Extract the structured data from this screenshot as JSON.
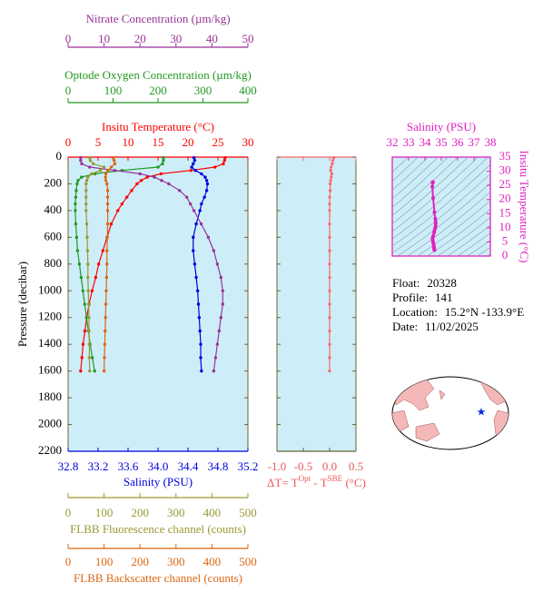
{
  "chart_data": [
    {
      "type": "profile",
      "ylabel": "Pressure (decibar)",
      "ylim": [
        0,
        2200
      ],
      "yticks": [
        0,
        200,
        400,
        600,
        800,
        1000,
        1200,
        1400,
        1600,
        1800,
        2000,
        2200
      ],
      "pressure": [
        5,
        25,
        50,
        75,
        100,
        125,
        150,
        175,
        200,
        250,
        300,
        350,
        400,
        500,
        600,
        700,
        800,
        900,
        1000,
        1100,
        1200,
        1300,
        1400,
        1500,
        1600
      ],
      "series": [
        {
          "name": "Insitu Temperature (°C)",
          "color": "#ff0000",
          "xlim": [
            0,
            30
          ],
          "xticks": [
            0,
            5,
            10,
            15,
            20,
            25,
            30
          ],
          "values": [
            26.2,
            26.1,
            25.9,
            24.5,
            20.5,
            15.5,
            13.2,
            12.2,
            11.5,
            10.6,
            9.8,
            9.0,
            8.3,
            7.2,
            6.5,
            5.8,
            5.1,
            4.6,
            4.0,
            3.5,
            3.1,
            2.8,
            2.5,
            2.3,
            2.1
          ]
        },
        {
          "name": "Salinity (PSU)",
          "color": "#0000dd",
          "xlim": [
            32.8,
            35.2
          ],
          "xticks": [
            32.8,
            33.2,
            33.6,
            {
              "value": 34,
              "label": "34.0"
            },
            34.4,
            34.8,
            35.2
          ],
          "values": [
            34.48,
            34.49,
            34.47,
            34.45,
            34.5,
            34.58,
            34.63,
            34.65,
            34.66,
            34.65,
            34.62,
            34.58,
            34.56,
            34.51,
            34.47,
            34.47,
            34.49,
            34.51,
            34.53,
            34.54,
            34.55,
            34.56,
            34.57,
            34.57,
            34.58
          ]
        },
        {
          "name": "Optode Oxygen Concentration (µm/kg)",
          "color": "#229922",
          "xlim": [
            0,
            400
          ],
          "xticks": [
            0,
            100,
            200,
            300,
            400
          ],
          "values": [
            212,
            212,
            210,
            200,
            120,
            60,
            30,
            22,
            20,
            18,
            17,
            16,
            16,
            17,
            19,
            21,
            25,
            29,
            33,
            37,
            41,
            45,
            49,
            54,
            59
          ]
        },
        {
          "name": "Nitrate Concentration (µm/kg)",
          "color": "#993399",
          "xlim": [
            0,
            50
          ],
          "xticks": [
            0,
            10,
            20,
            30,
            40,
            50
          ],
          "values": [
            3.5,
            3.5,
            3.8,
            6,
            13,
            20,
            24,
            26,
            28,
            31,
            33,
            34,
            35,
            37,
            39,
            40.5,
            41.5,
            42.5,
            43,
            43,
            42.5,
            42,
            41.5,
            41,
            40.5
          ]
        },
        {
          "name": "FLBB Fluorescence channel (counts)",
          "color": "#999933",
          "xlim": [
            0,
            500
          ],
          "xticks": [
            0,
            100,
            200,
            300,
            400,
            500
          ],
          "values": [
            60,
            62,
            70,
            100,
            90,
            65,
            55,
            52,
            50,
            50,
            50,
            50,
            50,
            52,
            53,
            54,
            55,
            55,
            56,
            57,
            58,
            58,
            59,
            59,
            60
          ]
        },
        {
          "name": "FLBB Backscatter channel (counts)",
          "color": "#dd6611",
          "xlim": [
            0,
            500
          ],
          "xticks": [
            0,
            100,
            200,
            300,
            400,
            500
          ],
          "values": [
            125,
            128,
            130,
            120,
            110,
            105,
            104,
            105,
            108,
            110,
            110,
            110,
            110,
            110,
            109,
            108,
            108,
            107,
            106,
            105,
            104,
            103,
            102,
            101,
            100
          ]
        }
      ]
    },
    {
      "type": "line",
      "xlabel_parts": [
        "ΔT= T",
        "Opt",
        " - T",
        "SBE",
        " (°C)"
      ],
      "color": "#ff6666",
      "xlim": [
        -1,
        0.5
      ],
      "xticks": [
        {
          "value": -1,
          "label": "-1.0"
        },
        -0.5,
        {
          "value": 0,
          "label": "0.0"
        },
        0.5
      ],
      "ylim": [
        0,
        2200
      ],
      "yticks": [
        0,
        200,
        400,
        600,
        800,
        1000,
        1200,
        1400,
        1600,
        1800,
        2000,
        2200
      ],
      "pressure": [
        5,
        25,
        50,
        75,
        100,
        125,
        150,
        175,
        200,
        250,
        300,
        350,
        400,
        500,
        600,
        700,
        800,
        900,
        1000,
        1100,
        1200,
        1300,
        1400,
        1500,
        1600
      ],
      "values": [
        0.08,
        0.06,
        0.05,
        0.03,
        0.02,
        0.04,
        0.03,
        0.02,
        0.01,
        0.01,
        0,
        0,
        0,
        0,
        0,
        0,
        0,
        0,
        0,
        0,
        0,
        0,
        0,
        0,
        0
      ]
    },
    {
      "type": "ts",
      "xlabel": "Salinity (PSU)",
      "ylabel": "Insitu Temperature (°C)",
      "color": "#e020c0",
      "xlim": [
        32,
        38
      ],
      "xticks": [
        32,
        33,
        34,
        35,
        36,
        37,
        38
      ],
      "ylim": [
        0,
        35
      ],
      "yticks": [
        0,
        5,
        10,
        15,
        20,
        25,
        30,
        35
      ]
    },
    {
      "type": "text",
      "lines": [
        {
          "label": "Float:",
          "value": "20328"
        },
        {
          "label": "Profile:",
          "value": "141"
        },
        {
          "label": "Location:",
          "value": "15.2°N  -133.9°E"
        },
        {
          "label": "Date:",
          "value": "11/02/2025"
        }
      ]
    }
  ]
}
